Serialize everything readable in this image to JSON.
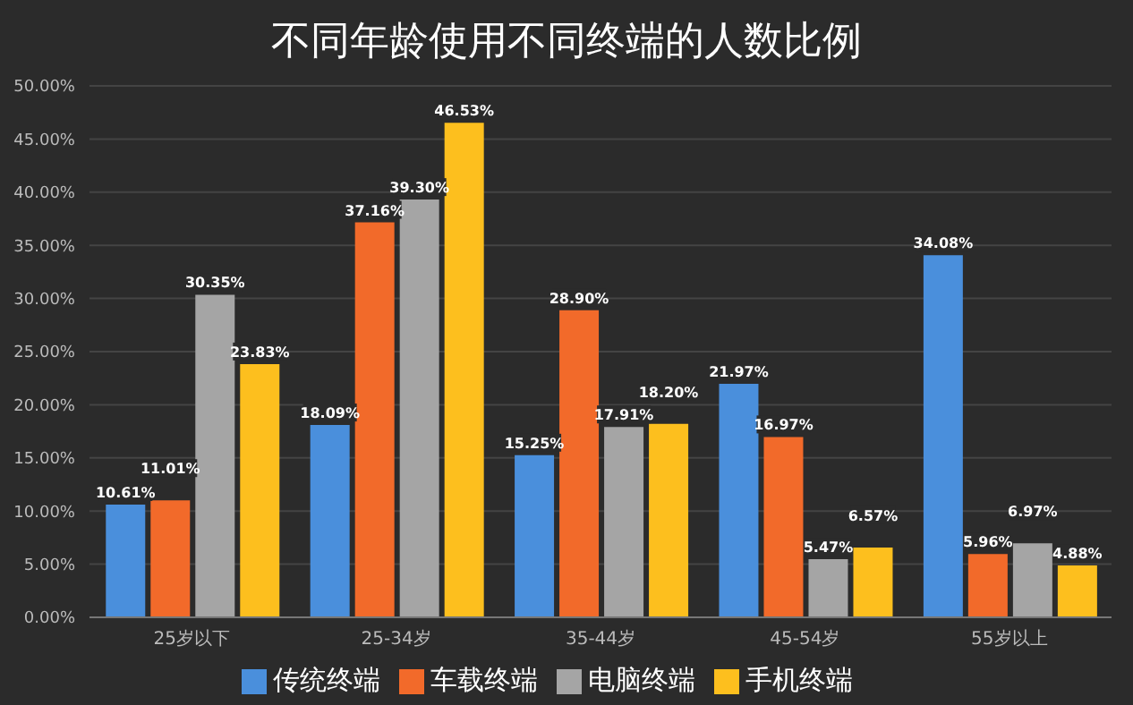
{
  "chart_data": {
    "type": "bar",
    "title": "不同年龄使用不同终端的人数比例",
    "categories": [
      "25岁以下",
      "25-34岁",
      "35-44岁",
      "45-54岁",
      "55岁以上"
    ],
    "series": [
      {
        "name": "传统终端",
        "color": "#4a8fdc",
        "values": [
          10.61,
          18.09,
          15.25,
          21.97,
          34.08
        ],
        "value_labels": [
          "10.61%",
          "18.09%",
          "15.25%",
          "21.97%",
          "34.08%"
        ]
      },
      {
        "name": "车载终端",
        "color": "#f26a2a",
        "values": [
          11.01,
          37.16,
          28.9,
          16.97,
          5.96
        ],
        "value_labels": [
          "11.01%",
          "37.16%",
          "28.90%",
          "16.97%",
          "5.96%"
        ]
      },
      {
        "name": "电脑终端",
        "color": "#a5a5a5",
        "values": [
          30.35,
          39.3,
          17.91,
          5.47,
          6.97
        ],
        "value_labels": [
          "30.35%",
          "39.30%",
          "17.91%",
          "5.47%",
          "6.97%"
        ]
      },
      {
        "name": "手机终端",
        "color": "#fdbf1e",
        "values": [
          23.83,
          46.53,
          18.2,
          6.57,
          4.88
        ],
        "value_labels": [
          "23.83%",
          "46.53%",
          "18.20%",
          "6.57%",
          "4.88%"
        ]
      }
    ],
    "ylim": [
      0,
      50
    ],
    "yticks": [
      {
        "value": 0,
        "label": "0.00%"
      },
      {
        "value": 5,
        "label": "5.00%"
      },
      {
        "value": 10,
        "label": "10.00%"
      },
      {
        "value": 15,
        "label": "15.00%"
      },
      {
        "value": 20,
        "label": "20.00%"
      },
      {
        "value": 25,
        "label": "25.00%"
      },
      {
        "value": 30,
        "label": "30.00%"
      },
      {
        "value": 35,
        "label": "35.00%"
      },
      {
        "value": 40,
        "label": "40.00%"
      },
      {
        "value": 45,
        "label": "45.00%"
      },
      {
        "value": 50,
        "label": "50.00%"
      }
    ],
    "grid": "y",
    "legend": "bottom"
  }
}
